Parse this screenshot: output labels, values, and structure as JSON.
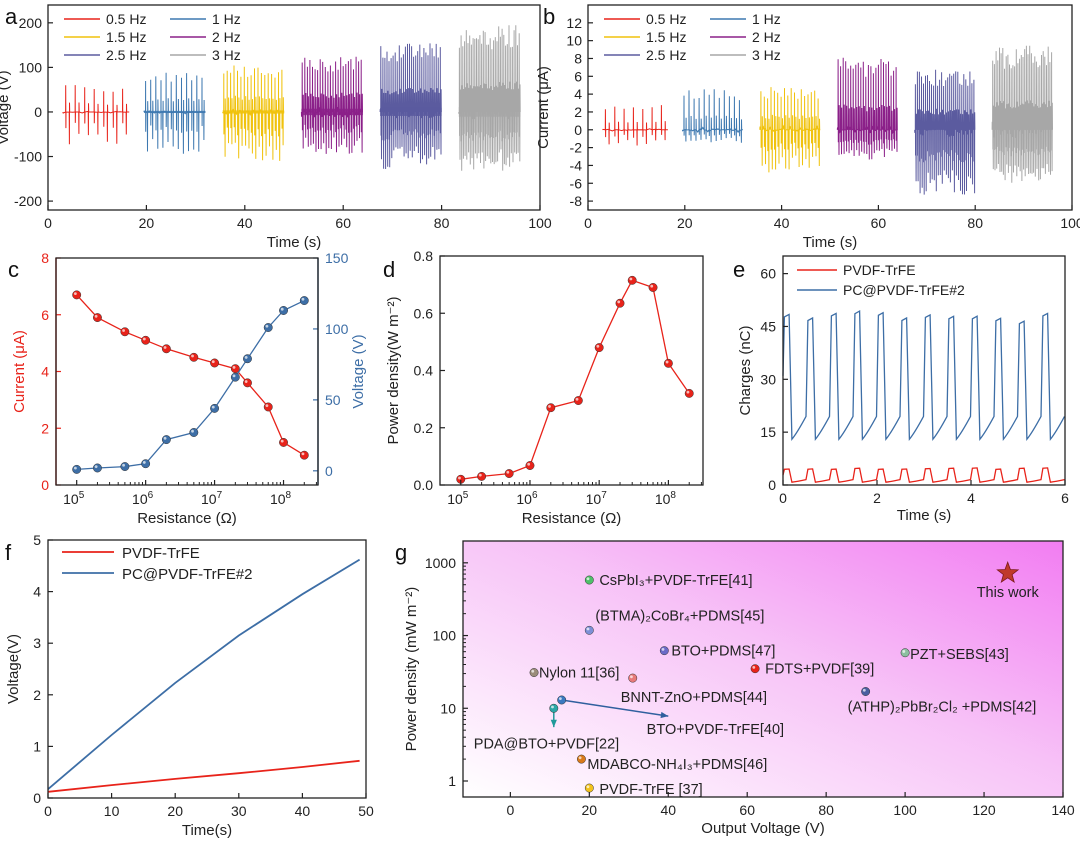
{
  "chart_data": [
    {
      "id": "a",
      "panel_label": "a",
      "type": "line",
      "xlabel": "Time (s)",
      "ylabel": "Voltage (V)",
      "xlim": [
        0,
        100
      ],
      "ylim": [
        -220,
        240
      ],
      "xticks": [
        0,
        20,
        40,
        60,
        80,
        100
      ],
      "yticks": [
        -200,
        -100,
        0,
        100,
        200
      ],
      "legend_position": "top-left",
      "series": [
        {
          "name": "0.5 Hz",
          "color": "#e8231a",
          "t_start": 3,
          "t_end": 16.5,
          "freq": 0.5,
          "pulses": 7,
          "peak_pos": 62,
          "peak_neg": -75,
          "noise": 3
        },
        {
          "name": "1 Hz",
          "color": "#3d78b0",
          "t_start": 19.5,
          "t_end": 32,
          "freq": 1,
          "pulses": 12,
          "peak_pos": 92,
          "peak_neg": -95,
          "noise": 4
        },
        {
          "name": "1.5 Hz",
          "color": "#f0c20d",
          "t_start": 35.5,
          "t_end": 48,
          "freq": 1.5,
          "pulses": 18,
          "peak_pos": 105,
          "peak_neg": -112,
          "noise": 6
        },
        {
          "name": "2 Hz",
          "color": "#8b2089",
          "t_start": 51.5,
          "t_end": 64,
          "freq": 2,
          "pulses": 24,
          "peak_pos": 125,
          "peak_neg": -95,
          "noise": 12
        },
        {
          "name": "2.5 Hz",
          "color": "#5b5b9f",
          "t_start": 67.5,
          "t_end": 80,
          "freq": 2.5,
          "pulses": 30,
          "peak_pos": 155,
          "peak_neg": -128,
          "noise": 15
        },
        {
          "name": "3 Hz",
          "color": "#a7a7a7",
          "t_start": 83.5,
          "t_end": 96,
          "freq": 3,
          "pulses": 36,
          "peak_pos": 195,
          "peak_neg": -135,
          "noise": 18
        }
      ]
    },
    {
      "id": "b",
      "panel_label": "b",
      "type": "line",
      "xlabel": "Time (s)",
      "ylabel": "Current (μA)",
      "xlim": [
        0,
        100
      ],
      "ylim": [
        -9,
        14
      ],
      "xticks": [
        0,
        20,
        40,
        60,
        80,
        100
      ],
      "yticks": [
        -8,
        -6,
        -4,
        -2,
        0,
        2,
        4,
        6,
        8,
        10,
        12
      ],
      "legend_position": "top-left",
      "series": [
        {
          "name": "0.5 Hz",
          "color": "#e8231a",
          "t_start": 3,
          "t_end": 16.5,
          "freq": 0.5,
          "pulses": 7,
          "peak_pos": 3,
          "peak_neg": -1.8,
          "noise": 0.15
        },
        {
          "name": "1 Hz",
          "color": "#3d78b0",
          "t_start": 19.5,
          "t_end": 32,
          "freq": 1,
          "pulses": 12,
          "peak_pos": 4.6,
          "peak_neg": -1.5,
          "noise": 0.3
        },
        {
          "name": "1.5 Hz",
          "color": "#f0c20d",
          "t_start": 35.5,
          "t_end": 48,
          "freq": 1.5,
          "pulses": 18,
          "peak_pos": 4.8,
          "peak_neg": -4.8,
          "noise": 0.4
        },
        {
          "name": "2 Hz",
          "color": "#8b2089",
          "t_start": 51.5,
          "t_end": 64,
          "freq": 2,
          "pulses": 24,
          "peak_pos": 8.2,
          "peak_neg": -3.5,
          "noise": 0.5
        },
        {
          "name": "2.5 Hz",
          "color": "#5b5b9f",
          "t_start": 67.5,
          "t_end": 80,
          "freq": 2.5,
          "pulses": 30,
          "peak_pos": 6.8,
          "peak_neg": -7.5,
          "noise": 0.8
        },
        {
          "name": "3 Hz",
          "color": "#a7a7a7",
          "t_start": 83.5,
          "t_end": 96,
          "freq": 3,
          "pulses": 36,
          "peak_pos": 9.5,
          "peak_neg": -6,
          "noise": 1
        }
      ]
    },
    {
      "id": "c",
      "panel_label": "c",
      "type": "line",
      "xlabel": "Resistance (Ω)",
      "x_scale": "log",
      "xlim_log10": [
        4.7,
        8.5
      ],
      "xticks_log10": [
        5,
        6,
        7,
        8
      ],
      "xtick_labels": [
        "10",
        "10",
        "10",
        "10"
      ],
      "xtick_exponents": [
        "5",
        "6",
        "7",
        "8"
      ],
      "ylabel_left": "Current (μA)",
      "ylim_left": [
        0,
        8
      ],
      "yticks_left": [
        0,
        2,
        4,
        6,
        8
      ],
      "ylabel_right": "Voltage (V)",
      "ylim_right": [
        -10,
        150
      ],
      "yticks_right": [
        0,
        50,
        100,
        150
      ],
      "x": [
        100000,
        200000,
        500000,
        1000000,
        2000000,
        5000000,
        10000000,
        20000000,
        30000000,
        60000000,
        100000000,
        200000000
      ],
      "series": [
        {
          "name": "Current",
          "axis": "left",
          "color": "#e8231a",
          "values": [
            6.7,
            5.9,
            5.4,
            5.1,
            4.8,
            4.5,
            4.3,
            4.1,
            3.6,
            2.75,
            1.5,
            1.05
          ]
        },
        {
          "name": "Voltage",
          "axis": "right",
          "color": "#3d6ea6",
          "values": [
            1,
            2,
            3,
            5,
            22,
            27,
            44,
            66,
            79,
            101,
            113,
            120
          ]
        }
      ]
    },
    {
      "id": "d",
      "panel_label": "d",
      "type": "line",
      "xlabel": "Resistance (Ω)",
      "ylabel": "Power density(W m⁻²)",
      "x_scale": "log",
      "xlim_log10": [
        4.7,
        8.5
      ],
      "xticks_log10": [
        5,
        6,
        7,
        8
      ],
      "xtick_labels": [
        "10",
        "10",
        "10",
        "10"
      ],
      "xtick_exponents": [
        "5",
        "6",
        "7",
        "8"
      ],
      "ylim": [
        0,
        0.8
      ],
      "yticks": [
        0.0,
        0.2,
        0.4,
        0.6,
        0.8
      ],
      "ytick_labels": [
        "0.0",
        "0.2",
        "0.4",
        "0.6",
        "0.8"
      ],
      "x": [
        100000,
        200000,
        500000,
        1000000,
        2000000,
        5000000,
        10000000,
        20000000,
        30000000,
        60000000,
        100000000,
        200000000
      ],
      "series": [
        {
          "name": "Power density",
          "color": "#e8231a",
          "values": [
            0.02,
            0.03,
            0.04,
            0.068,
            0.27,
            0.295,
            0.48,
            0.635,
            0.715,
            0.69,
            0.425,
            0.32
          ]
        }
      ]
    },
    {
      "id": "e",
      "panel_label": "e",
      "type": "line",
      "xlabel": "Time (s)",
      "ylabel": "Charges (nC)",
      "xlim": [
        0,
        6
      ],
      "ylim": [
        0,
        65
      ],
      "xticks": [
        0,
        2,
        4,
        6
      ],
      "yticks": [
        0,
        15,
        30,
        45,
        60
      ],
      "legend_position": "top",
      "series": [
        {
          "name": "PVDF-TrFE",
          "color": "#e8231a",
          "low": 0.8,
          "high": 4.8,
          "cycles": 12
        },
        {
          "name": "PC@PVDF-TrFE#2",
          "color": "#3d6ea6",
          "low": 13,
          "high": 49,
          "cycles": 12
        }
      ]
    },
    {
      "id": "f",
      "panel_label": "f",
      "type": "line",
      "xlabel": "Time(s)",
      "ylabel": "Voltage(V)",
      "xlim": [
        0,
        50
      ],
      "ylim": [
        0,
        5
      ],
      "xticks": [
        0,
        10,
        20,
        30,
        40,
        50
      ],
      "yticks": [
        0,
        1,
        2,
        3,
        4,
        5
      ],
      "legend_position": "top-left",
      "series": [
        {
          "name": "PVDF-TrFE",
          "color": "#e8231a",
          "x": [
            0,
            10,
            20,
            30,
            40,
            49
          ],
          "values": [
            0.12,
            0.25,
            0.37,
            0.48,
            0.6,
            0.72
          ]
        },
        {
          "name": "PC@PVDF-TrFE#2",
          "color": "#3d6ea6",
          "x": [
            0,
            10,
            20,
            30,
            40,
            49
          ],
          "values": [
            0.17,
            1.22,
            2.23,
            3.15,
            3.95,
            4.62
          ]
        }
      ]
    },
    {
      "id": "g",
      "panel_label": "g",
      "type": "scatter",
      "xlabel": "Output Voltage (V)",
      "ylabel": "Power density (mW m⁻²)",
      "y_scale": "log",
      "xlim": [
        -12,
        140
      ],
      "ylim_log10": [
        -0.22,
        3.3
      ],
      "xticks": [
        0,
        20,
        40,
        60,
        80,
        100,
        120,
        140
      ],
      "yticks": [
        1,
        10,
        100,
        1000
      ],
      "points": [
        {
          "label": "CsPbI₃+PVDF-TrFE[41]",
          "x": 20,
          "y": 580,
          "color": "#4fbf6a",
          "marker": "sphere"
        },
        {
          "label": "(BTMA)₂CoBr₄+PDMS[45]",
          "x": 20,
          "y": 118,
          "color": "#7d8fd6",
          "marker": "sphere"
        },
        {
          "label": "BTO+PDMS[47]",
          "x": 39,
          "y": 62,
          "color": "#6a6ac6",
          "marker": "sphere"
        },
        {
          "label": "PZT+SEBS[43]",
          "x": 100,
          "y": 58,
          "color": "#8cbfa0",
          "marker": "sphere"
        },
        {
          "label": "FDTS+PVDF[39]",
          "x": 62,
          "y": 35,
          "color": "#e8231a",
          "marker": "sphere"
        },
        {
          "label": "Nylon 11[36]",
          "x": 6,
          "y": 31,
          "color": "#9a8c7a",
          "marker": "sphere"
        },
        {
          "label": "BNNT-ZnO+PDMS[44]",
          "x": 31,
          "y": 26,
          "color": "#e87a7a",
          "marker": "sphere"
        },
        {
          "label": "(ATHP)₂PbBr₂Cl₂ +PDMS[42]",
          "x": 90,
          "y": 17,
          "color": "#4a5fa0",
          "marker": "sphere"
        },
        {
          "label": "BTO+PVDF-TrFE[40]",
          "x": 13,
          "y": 13,
          "color": "#3a78c0",
          "marker": "sphere"
        },
        {
          "label": "PDA@BTO+PVDF[22]",
          "x": 11,
          "y": 10,
          "color": "#2aa6a6",
          "marker": "sphere"
        },
        {
          "label": "MDABCO-NH₄I₃+PDMS[46]",
          "x": 18,
          "y": 2,
          "color": "#d97a1a",
          "marker": "sphere"
        },
        {
          "label": "PVDF-TrFE [37]",
          "x": 20,
          "y": 0.8,
          "color": "#f2c21b",
          "marker": "sphere"
        },
        {
          "label": "This work",
          "x": 126,
          "y": 720,
          "color": "#c0392b",
          "marker": "star"
        }
      ],
      "arrows": [
        {
          "from": "BTO+PVDF-TrFE[40]",
          "to_x": 40,
          "to_y": 7.8,
          "color": "#2f5f9e"
        },
        {
          "from": "PDA@BTO+PVDF[22]",
          "to_x": 11,
          "to_y": 5.5,
          "color": "#1f9a9a"
        }
      ],
      "background_gradient": [
        "#ffffff",
        "#f27df2"
      ]
    }
  ]
}
